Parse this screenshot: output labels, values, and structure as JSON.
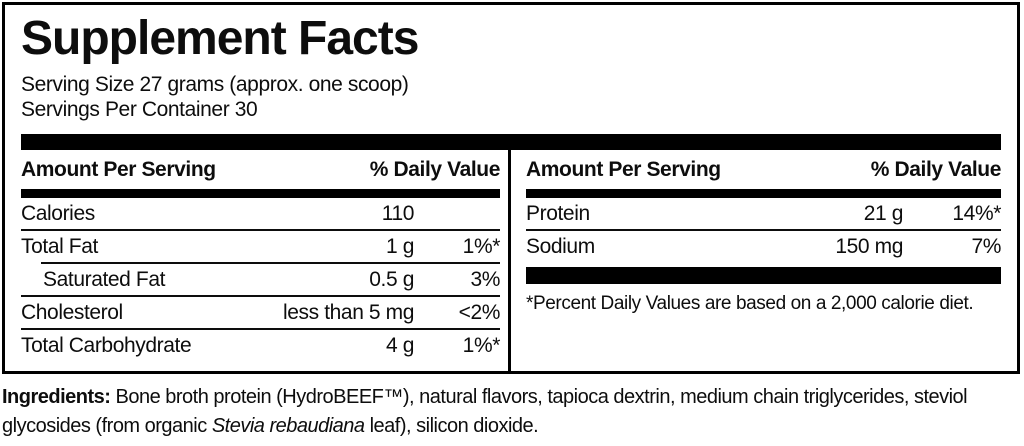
{
  "label": {
    "title": "Supplement Facts",
    "serving_size": "Serving Size 27 grams (approx. one scoop)",
    "servings_per_container": "Servings Per Container 30",
    "columns": {
      "left": {
        "header": {
          "amount": "Amount Per Serving",
          "daily_value": "% Daily Value"
        },
        "rows": [
          {
            "name": "Calories",
            "amount": "110",
            "daily_value": ""
          },
          {
            "name": "Total Fat",
            "amount": "1 g",
            "daily_value": "1%*"
          },
          {
            "name": "Saturated Fat",
            "amount": "0.5 g",
            "daily_value": "3%"
          },
          {
            "name": "Cholesterol",
            "amount": "less than 5 mg",
            "daily_value": "<2%"
          },
          {
            "name": "Total Carbohydrate",
            "amount": "4 g",
            "daily_value": "1%*"
          }
        ]
      },
      "right": {
        "header": {
          "amount": "Amount Per Serving",
          "daily_value": "% Daily Value"
        },
        "rows": [
          {
            "name": "Protein",
            "amount": "21 g",
            "daily_value": "14%*"
          },
          {
            "name": "Sodium",
            "amount": "150 mg",
            "daily_value": "7%"
          }
        ],
        "footnote": "*Percent Daily Values are based on a 2,000 calorie diet."
      }
    }
  },
  "ingredients": {
    "label": "Ingredients:",
    "line1_rest": " Bone broth protein (HydroBEEF™), natural flavors, tapioca dextrin, medium chain triglycerides, steviol",
    "line2_before_italic": "glycosides (from organic ",
    "line2_italic": "Stevia rebaudiana",
    "line2_after_italic": " leaf), silicon dioxide."
  },
  "colors": {
    "ink": "#0d0d0d",
    "rule": "#000000",
    "background": "#ffffff"
  }
}
